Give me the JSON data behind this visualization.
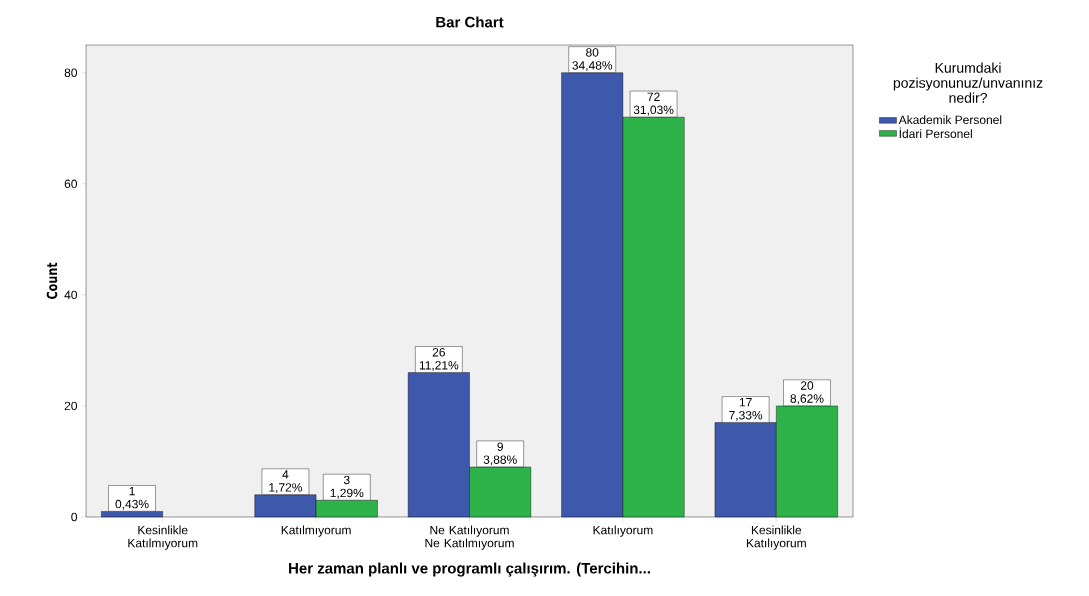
{
  "chart_data": {
    "type": "bar",
    "title": "Bar Chart",
    "xlabel": "Her zaman planlı ve programlı çalışırım. (Tercihin...",
    "ylabel": "Count",
    "legend_title": "Kurumdaki pozisyonunuz/unvanınız nedir?",
    "categories": [
      "Kesinlikle Katılmıyorum",
      "Katılmıyorum",
      "Ne Katılıyorum Ne Katılmıyorum",
      "Katılıyorum",
      "Kesinlikle Katılıyorum"
    ],
    "series": [
      {
        "name": "Akademik Personel",
        "color": "#3e58ac",
        "values": [
          1,
          4,
          26,
          80,
          17
        ],
        "value_labels": [
          "1 0,43%",
          "4 1,72%",
          "26 11,21%",
          "80 34,48%",
          "17 7,33%"
        ]
      },
      {
        "name": "İdari Personel",
        "color": "#2db34a",
        "values": [
          null,
          3,
          9,
          72,
          20
        ],
        "value_labels": [
          null,
          "3 1,29%",
          "9 3,88%",
          "72 31,03%",
          "20 8,62%"
        ]
      }
    ],
    "ylim": [
      0,
      85
    ],
    "yticks": [
      0,
      20,
      40,
      60,
      80
    ],
    "grid": false,
    "legend": "right"
  }
}
